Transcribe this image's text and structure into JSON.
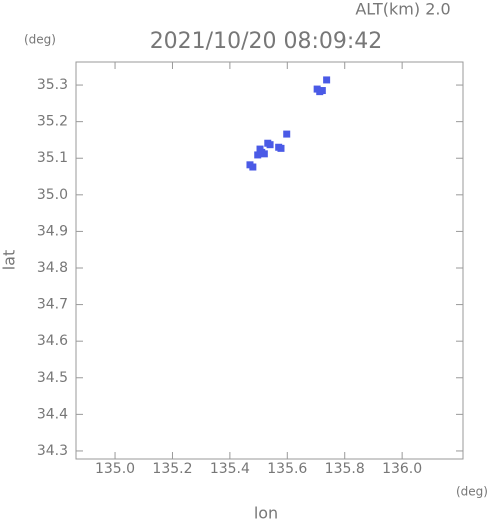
{
  "chart_data": {
    "type": "scatter",
    "title": "2021/10/20 08:09:42",
    "subtitle": "ALT(km) 2.0",
    "y_unit": "(deg)",
    "x_unit": "(deg)",
    "xlabel": "lon",
    "ylabel": "lat",
    "xlim": [
      134.864,
      136.212
    ],
    "ylim": [
      34.278,
      35.363
    ],
    "xticks": [
      {
        "value": 135,
        "label": "135.0"
      },
      135.2,
      135.4,
      135.6,
      135.8,
      {
        "value": 136,
        "label": "136.0"
      }
    ],
    "yticks": [
      34.3,
      34.4,
      34.5,
      34.6,
      34.7,
      34.8,
      34.9,
      {
        "value": 35,
        "label": "35.0"
      },
      35.1,
      35.2,
      35.3
    ],
    "color": "#4a5ae6",
    "x": [
      135.47,
      135.48,
      135.497,
      135.505,
      135.511,
      135.52,
      135.532,
      135.54,
      135.57,
      135.578,
      135.598,
      135.704,
      135.713,
      135.722,
      135.737
    ],
    "values": [
      35.082,
      35.076,
      35.109,
      35.125,
      35.116,
      35.112,
      35.141,
      35.137,
      35.13,
      35.127,
      35.166,
      35.289,
      35.282,
      35.285,
      35.314
    ]
  }
}
